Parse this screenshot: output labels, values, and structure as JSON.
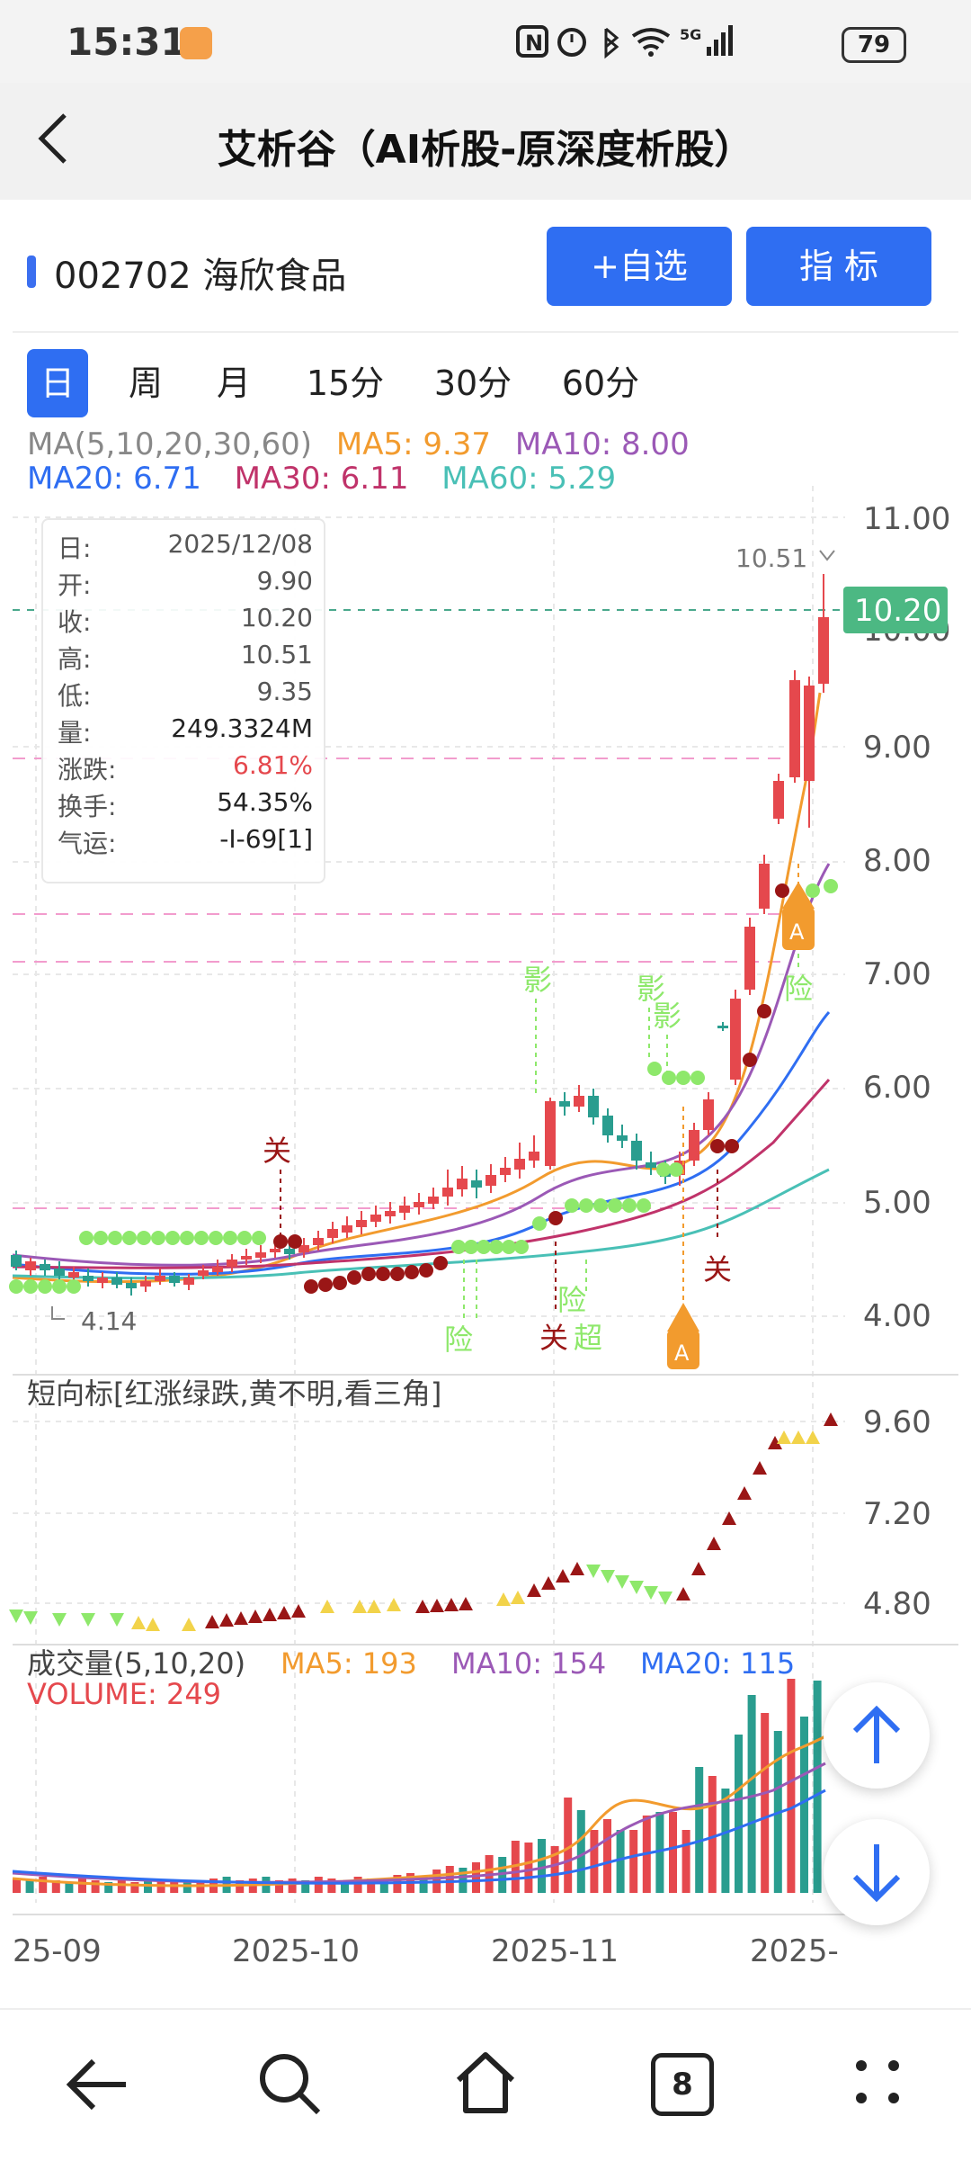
{
  "status_bar": {
    "time": "15:31",
    "battery": "79"
  },
  "header": {
    "title": "艾析谷（AI析股-原深度析股）"
  },
  "stock": {
    "code_name": "002702 海欣食品"
  },
  "buttons": {
    "add_watch": "+自选",
    "indicator": "指  标"
  },
  "period_tabs": [
    "日",
    "周",
    "月",
    "15分",
    "30分",
    "60分"
  ],
  "ma_header": {
    "label": "MA(5,10,20,30,60)",
    "ma5": "MA5: 9.37",
    "ma10": "MA10: 8.00",
    "ma20": "MA20: 6.71",
    "ma30": "MA30: 6.11",
    "ma60": "MA60: 5.29"
  },
  "colors": {
    "up": "#e5484d",
    "down": "#2a9d8f",
    "ma5": "#f29b2e",
    "ma10": "#9b59b6",
    "ma20": "#2f6ef2",
    "ma30": "#c0336a",
    "ma60": "#49c0b6",
    "accent": "#2f6ef2"
  },
  "price_axis": [
    "11.00",
    "10.00",
    "9.00",
    "8.00",
    "7.00",
    "6.00",
    "5.00",
    "4.00"
  ],
  "current_price": "10.20",
  "high_label": "10.51",
  "low_label": "4.14",
  "info": [
    {
      "k": "日:",
      "v": "2025/12/08"
    },
    {
      "k": "开:",
      "v": "9.90"
    },
    {
      "k": "收:",
      "v": "10.20"
    },
    {
      "k": "高:",
      "v": "10.51"
    },
    {
      "k": "低:",
      "v": "9.35"
    },
    {
      "k": "量:",
      "v": "249.3324M"
    },
    {
      "k": "涨跌:",
      "v": "6.81%"
    },
    {
      "k": "换手:",
      "v": "54.35%"
    },
    {
      "k": "气运:",
      "v": "-I-69[1]"
    }
  ],
  "annotations": {
    "guan": "关",
    "ying": "影",
    "xian": "险",
    "chao": "超",
    "a": "A"
  },
  "short_indicator": {
    "title": "短向标[红涨绿跌,黄不明,看三角]",
    "axis": [
      "9.60",
      "7.20",
      "4.80"
    ]
  },
  "volume": {
    "title": "成交量(5,10,20)",
    "ma5": "MA5: 193",
    "ma10": "MA10: 154",
    "ma20": "MA20: 115",
    "current": "VOLUME: 249"
  },
  "date_axis": [
    "25-09",
    "2025-10",
    "2025-11",
    "2025-"
  ],
  "bottom_nav": {
    "tab_count": "8"
  }
}
